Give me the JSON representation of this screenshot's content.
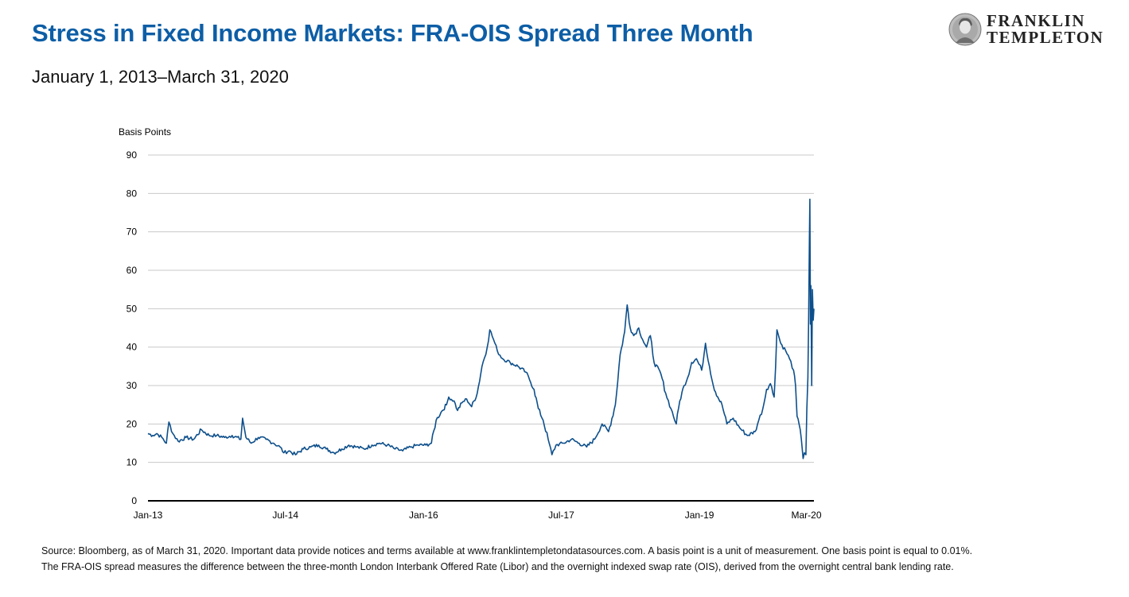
{
  "header": {
    "title": "Stress in Fixed Income Markets: FRA-OIS Spread Three Month",
    "subtitle": "January 1, 2013–March 31, 2020"
  },
  "logo": {
    "line1": "FRANKLIN",
    "line2": "TEMPLETON",
    "icon": "benjamin-franklin-seal-icon"
  },
  "footer": {
    "source": "Source: Bloomberg, as of March 31, 2020. Important data provide notices and terms available at www.franklintempletondatasources.com. A basis point is a unit of measurement. One basis point is equal to 0.01%. The FRA-OIS spread measures the difference between the three-month London Interbank Offered Rate (Libor) and the overnight indexed swap rate (OIS), derived from the overnight central bank lending rate."
  },
  "colors": {
    "title": "#0d5ea6",
    "line": "#0d4f8b",
    "grid": "#c8c8c8",
    "axis": "#000000"
  },
  "chart_data": {
    "type": "line",
    "ylabel": "Basis Points",
    "ylim": [
      0,
      90
    ],
    "yticks": [
      "0",
      "10",
      "20",
      "30",
      "40",
      "50",
      "60",
      "70",
      "80",
      "90"
    ],
    "xlim": [
      "2013-01-01",
      "2020-03-31"
    ],
    "xticks": [
      {
        "label": "Jan-13",
        "date": "2013-01-01"
      },
      {
        "label": "Jul-14",
        "date": "2014-07-01"
      },
      {
        "label": "Jan-16",
        "date": "2016-01-01"
      },
      {
        "label": "Jul-17",
        "date": "2017-07-01"
      },
      {
        "label": "Jan-19",
        "date": "2019-01-01"
      },
      {
        "label": "Mar-20",
        "date": "2020-03-01"
      }
    ],
    "grid": true,
    "legend": "none",
    "series": [
      {
        "points": [
          [
            "2013-01-01",
            17.5
          ],
          [
            "2013-01-20",
            17
          ],
          [
            "2013-02-05",
            17.5
          ],
          [
            "2013-02-25",
            16.5
          ],
          [
            "2013-03-15",
            15
          ],
          [
            "2013-03-25",
            20.5
          ],
          [
            "2013-04-10",
            17.5
          ],
          [
            "2013-05-01",
            15.5
          ],
          [
            "2013-06-01",
            16.5
          ],
          [
            "2013-07-01",
            16
          ],
          [
            "2013-08-01",
            18.5
          ],
          [
            "2013-09-01",
            17
          ],
          [
            "2013-10-01",
            17
          ],
          [
            "2013-11-01",
            16.5
          ],
          [
            "2013-12-01",
            17
          ],
          [
            "2014-01-05",
            16
          ],
          [
            "2014-01-12",
            21.5
          ],
          [
            "2014-01-25",
            16.5
          ],
          [
            "2014-02-15",
            15
          ],
          [
            "2014-03-15",
            16.5
          ],
          [
            "2014-04-15",
            16
          ],
          [
            "2014-05-15",
            15
          ],
          [
            "2014-06-10",
            14
          ],
          [
            "2014-06-25",
            12.5
          ],
          [
            "2014-07-15",
            13
          ],
          [
            "2014-08-10",
            12
          ],
          [
            "2014-09-10",
            13.5
          ],
          [
            "2014-10-10",
            14
          ],
          [
            "2014-11-10",
            14.5
          ],
          [
            "2014-12-10",
            13.5
          ],
          [
            "2015-01-10",
            12.5
          ],
          [
            "2015-02-10",
            13.5
          ],
          [
            "2015-03-10",
            14.5
          ],
          [
            "2015-04-10",
            14
          ],
          [
            "2015-05-10",
            13.5
          ],
          [
            "2015-06-10",
            14.5
          ],
          [
            "2015-07-10",
            15
          ],
          [
            "2015-08-10",
            14.5
          ],
          [
            "2015-09-10",
            13.5
          ],
          [
            "2015-10-10",
            13
          ],
          [
            "2015-11-10",
            14
          ],
          [
            "2015-12-10",
            14.5
          ],
          [
            "2016-01-10",
            14.5
          ],
          [
            "2016-02-01",
            15
          ],
          [
            "2016-02-20",
            21
          ],
          [
            "2016-03-10",
            23
          ],
          [
            "2016-04-01",
            25
          ],
          [
            "2016-04-10",
            27
          ],
          [
            "2016-05-01",
            26
          ],
          [
            "2016-05-15",
            23.5
          ],
          [
            "2016-06-01",
            25.5
          ],
          [
            "2016-06-20",
            26.5
          ],
          [
            "2016-07-10",
            24.5
          ],
          [
            "2016-08-01",
            28
          ],
          [
            "2016-08-20",
            35
          ],
          [
            "2016-09-10",
            40
          ],
          [
            "2016-09-20",
            44.5
          ],
          [
            "2016-10-05",
            42
          ],
          [
            "2016-10-20",
            39
          ],
          [
            "2016-11-10",
            37
          ],
          [
            "2016-12-10",
            36
          ],
          [
            "2017-01-10",
            35
          ],
          [
            "2017-02-10",
            33.5
          ],
          [
            "2017-02-25",
            31.5
          ],
          [
            "2017-03-15",
            29
          ],
          [
            "2017-04-01",
            24
          ],
          [
            "2017-04-20",
            21
          ],
          [
            "2017-05-10",
            16
          ],
          [
            "2017-05-25",
            12
          ],
          [
            "2017-06-10",
            14.5
          ],
          [
            "2017-07-10",
            15
          ],
          [
            "2017-08-10",
            16
          ],
          [
            "2017-09-10",
            15
          ],
          [
            "2017-10-10",
            14
          ],
          [
            "2017-11-10",
            16
          ],
          [
            "2017-12-10",
            20
          ],
          [
            "2018-01-05",
            18
          ],
          [
            "2018-02-01",
            25
          ],
          [
            "2018-02-20",
            38
          ],
          [
            "2018-03-10",
            44
          ],
          [
            "2018-03-20",
            51
          ],
          [
            "2018-04-01",
            45
          ],
          [
            "2018-04-15",
            43
          ],
          [
            "2018-05-05",
            45
          ],
          [
            "2018-05-20",
            42
          ],
          [
            "2018-06-05",
            40
          ],
          [
            "2018-06-20",
            43
          ],
          [
            "2018-07-05",
            36
          ],
          [
            "2018-08-01",
            33
          ],
          [
            "2018-08-20",
            28
          ],
          [
            "2018-09-10",
            24
          ],
          [
            "2018-10-01",
            20
          ],
          [
            "2018-10-15",
            26
          ],
          [
            "2018-11-01",
            30
          ],
          [
            "2018-11-15",
            32
          ],
          [
            "2018-12-01",
            36
          ],
          [
            "2018-12-20",
            37
          ],
          [
            "2019-01-10",
            34
          ],
          [
            "2019-01-25",
            41
          ],
          [
            "2019-02-10",
            35
          ],
          [
            "2019-02-25",
            30
          ],
          [
            "2019-03-15",
            27
          ],
          [
            "2019-04-01",
            25
          ],
          [
            "2019-04-20",
            20
          ],
          [
            "2019-05-15",
            21.5
          ],
          [
            "2019-06-10",
            19
          ],
          [
            "2019-07-10",
            17
          ],
          [
            "2019-08-10",
            18
          ],
          [
            "2019-08-25",
            21
          ],
          [
            "2019-09-10",
            24
          ],
          [
            "2019-09-25",
            29
          ],
          [
            "2019-10-10",
            30.5
          ],
          [
            "2019-10-25",
            27
          ],
          [
            "2019-11-05",
            44.5
          ],
          [
            "2019-11-20",
            41
          ],
          [
            "2019-12-10",
            39
          ],
          [
            "2019-12-25",
            37
          ],
          [
            "2020-01-10",
            34
          ],
          [
            "2020-01-18",
            30
          ],
          [
            "2020-01-24",
            22
          ],
          [
            "2020-02-01",
            20
          ],
          [
            "2020-02-10",
            16
          ],
          [
            "2020-02-17",
            11
          ],
          [
            "2020-02-22",
            12.5
          ],
          [
            "2020-02-28",
            12
          ],
          [
            "2020-03-03",
            24
          ],
          [
            "2020-03-07",
            32
          ],
          [
            "2020-03-10",
            48
          ],
          [
            "2020-03-13",
            68
          ],
          [
            "2020-03-15",
            78.5
          ],
          [
            "2020-03-17",
            46
          ],
          [
            "2020-03-19",
            56
          ],
          [
            "2020-03-22",
            30
          ],
          [
            "2020-03-25",
            55
          ],
          [
            "2020-03-28",
            47
          ],
          [
            "2020-03-31",
            50
          ]
        ]
      }
    ]
  }
}
